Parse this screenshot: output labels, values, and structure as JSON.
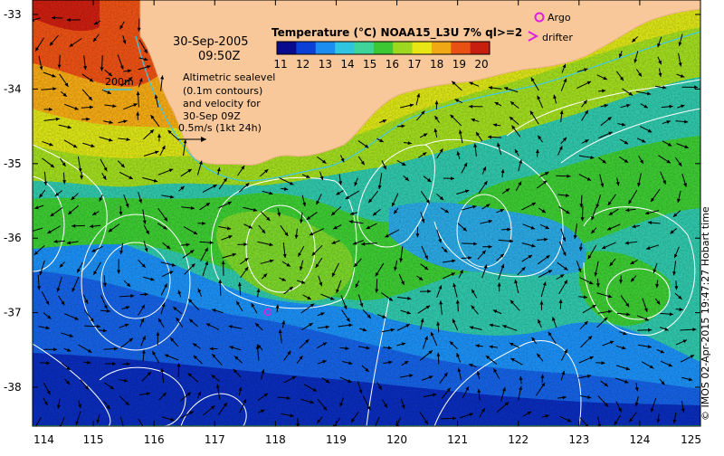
{
  "map": {
    "lon_ticks": [
      "114",
      "115",
      "116",
      "117",
      "118",
      "119",
      "120",
      "121",
      "122",
      "123",
      "124",
      "125"
    ],
    "lat_ticks": [
      "-33",
      "-34",
      "-35",
      "-36",
      "-37",
      "-38"
    ],
    "lon_range": [
      114,
      125
    ],
    "lat_range": [
      -33,
      -38.5
    ]
  },
  "annotation": {
    "date": "30-Sep-2005",
    "time": "09:50Z",
    "contour_label": "200m",
    "desc_lines": [
      "Altimetric sealevel",
      "(0.1m contours)",
      "and velocity for",
      "30-Sep 09Z"
    ],
    "scale_label": "0.5m/s (1kt 24h)"
  },
  "colorbar": {
    "title": "Temperature (°C) NOAA15_L3U 7% ql>=2",
    "ticks": [
      "11",
      "12",
      "13",
      "14",
      "15",
      "16",
      "17",
      "18",
      "19",
      "20"
    ],
    "colors": [
      "#0a0a8c",
      "#0c3fd6",
      "#1b8df0",
      "#2fc4e0",
      "#3ed49a",
      "#3cc832",
      "#9ed81e",
      "#e8e614",
      "#f0a814",
      "#e85014",
      "#c81e10"
    ]
  },
  "legend": {
    "argo_label": "Argo",
    "drifter_label": "drifter",
    "argo_color": "#e020e0",
    "drifter_color": "#e020e0"
  },
  "copyright": "© IMOS 02-Apr-2015 19:47:27 Hobart time",
  "colors": {
    "land": "#f9c89a",
    "contour": "#ffffff",
    "contour_200m": "#40c8e8",
    "arrow": "#000000"
  }
}
